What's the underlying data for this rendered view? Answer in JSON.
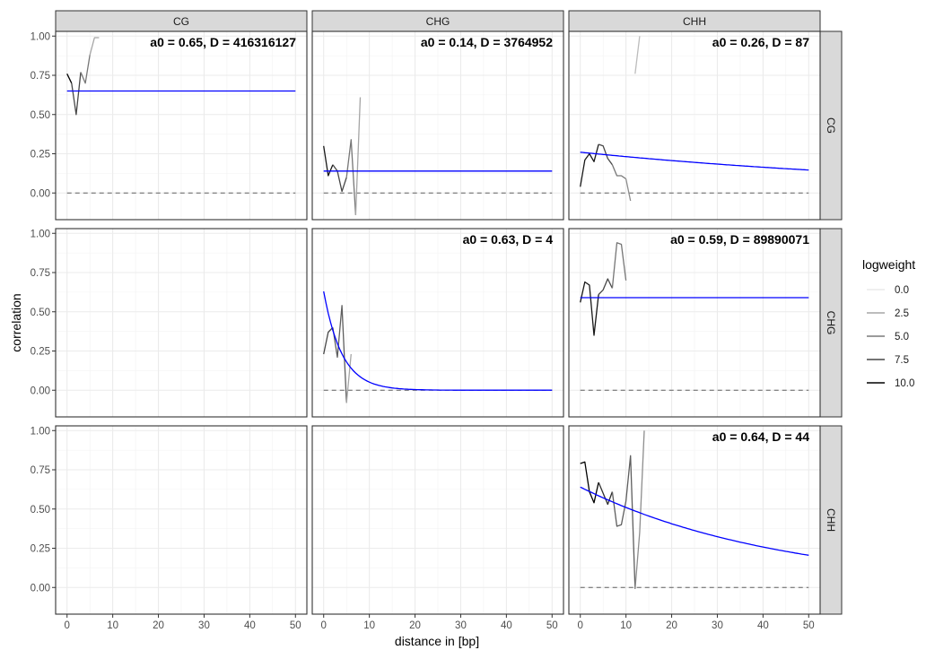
{
  "chart_data": {
    "type": "line",
    "facets": {
      "columns": [
        "CG",
        "CHG",
        "CHH"
      ],
      "rows": [
        "CG",
        "CHG",
        "CHH"
      ]
    },
    "xlabel": "distance in [bp]",
    "ylabel": "correlation",
    "xlim": [
      -2.5,
      52.5
    ],
    "ylim": [
      -0.17,
      1.03
    ],
    "xticks": [
      0,
      10,
      20,
      30,
      40,
      50
    ],
    "xtick_labels": [
      "0",
      "10",
      "20",
      "30",
      "40",
      "50"
    ],
    "yticks": [
      0,
      0.25,
      0.5,
      0.75,
      1
    ],
    "ytick_labels": [
      "0.00",
      "0.25",
      "0.50",
      "0.75",
      "1.00"
    ],
    "grid": true,
    "reference_line": {
      "y": 0,
      "style": "dashed"
    },
    "fit_color": "#0000ff",
    "legend": {
      "title": "logweight",
      "position": "right",
      "entries": [
        {
          "label": "0.0",
          "color": "#eaeaea"
        },
        {
          "label": "2.5",
          "color": "#a6a6a6"
        },
        {
          "label": "5.0",
          "color": "#7a7a7a"
        },
        {
          "label": "7.5",
          "color": "#474747"
        },
        {
          "label": "10.0",
          "color": "#000000"
        }
      ]
    },
    "panels": [
      {
        "col": 0,
        "row": 0,
        "annotation": "a0 = 0.65, D = 416316127",
        "fit": {
          "a0": 0.65,
          "D": 416316127
        },
        "series": [
          {
            "x": [
              0,
              1
            ],
            "y": [
              0.76,
              0.7
            ],
            "logweight": 10
          },
          {
            "x": [
              1,
              2,
              3
            ],
            "y": [
              0.7,
              0.5,
              0.77
            ],
            "logweight": 7
          },
          {
            "x": [
              3,
              4,
              5
            ],
            "y": [
              0.77,
              0.7,
              0.88
            ],
            "logweight": 5
          },
          {
            "x": [
              5,
              6,
              7
            ],
            "y": [
              0.88,
              0.99,
              0.99
            ],
            "logweight": 3
          }
        ]
      },
      {
        "col": 1,
        "row": 0,
        "annotation": "a0 = 0.14, D = 3764952",
        "fit": {
          "a0": 0.14,
          "D": 3764952
        },
        "series": [
          {
            "x": [
              0,
              1,
              2
            ],
            "y": [
              0.3,
              0.11,
              0.18
            ],
            "logweight": 9
          },
          {
            "x": [
              2,
              3,
              4,
              5
            ],
            "y": [
              0.18,
              0.14,
              0.01,
              0.1
            ],
            "logweight": 7
          },
          {
            "x": [
              5,
              6,
              7
            ],
            "y": [
              0.1,
              0.34,
              -0.14
            ],
            "logweight": 5
          },
          {
            "x": [
              7,
              8
            ],
            "y": [
              -0.14,
              0.61
            ],
            "logweight": 3
          }
        ]
      },
      {
        "col": 2,
        "row": 0,
        "annotation": "a0 = 0.26, D = 87",
        "fit": {
          "a0": 0.26,
          "D": 87
        },
        "series": [
          {
            "x": [
              0,
              1,
              2,
              3,
              4
            ],
            "y": [
              0.04,
              0.21,
              0.25,
              0.2,
              0.31
            ],
            "logweight": 9
          },
          {
            "x": [
              4,
              5,
              6,
              7
            ],
            "y": [
              0.31,
              0.3,
              0.22,
              0.18
            ],
            "logweight": 7
          },
          {
            "x": [
              7,
              8,
              9,
              10
            ],
            "y": [
              0.18,
              0.11,
              0.11,
              0.09
            ],
            "logweight": 5
          },
          {
            "x": [
              10,
              11
            ],
            "y": [
              0.09,
              -0.05
            ],
            "logweight": 4
          },
          {
            "x": [
              12,
              13
            ],
            "y": [
              0.76,
              1.0
            ],
            "logweight": 2
          }
        ]
      },
      {
        "col": 1,
        "row": 1,
        "annotation": "a0 = 0.63, D = 4",
        "fit": {
          "a0": 0.63,
          "D": 4
        },
        "series": [
          {
            "x": [
              0,
              1,
              2
            ],
            "y": [
              0.23,
              0.37,
              0.4
            ],
            "logweight": 7
          },
          {
            "x": [
              2,
              3,
              4,
              5
            ],
            "y": [
              0.4,
              0.21,
              0.54,
              -0.08
            ],
            "logweight": 6
          },
          {
            "x": [
              5,
              6
            ],
            "y": [
              -0.08,
              0.23
            ],
            "logweight": 3
          }
        ]
      },
      {
        "col": 2,
        "row": 1,
        "annotation": "a0 = 0.59, D = 89890071",
        "fit": {
          "a0": 0.59,
          "D": 89890071
        },
        "series": [
          {
            "x": [
              0,
              1,
              2,
              3,
              4
            ],
            "y": [
              0.56,
              0.69,
              0.67,
              0.35,
              0.61
            ],
            "logweight": 9
          },
          {
            "x": [
              4,
              5,
              6,
              7
            ],
            "y": [
              0.61,
              0.64,
              0.71,
              0.65
            ],
            "logweight": 7
          },
          {
            "x": [
              7,
              8,
              9,
              10
            ],
            "y": [
              0.65,
              0.94,
              0.93,
              0.7
            ],
            "logweight": 5
          }
        ]
      },
      {
        "col": 2,
        "row": 2,
        "annotation": "a0 = 0.64, D = 44",
        "fit": {
          "a0": 0.64,
          "D": 44
        },
        "series": [
          {
            "x": [
              0,
              1,
              2,
              3,
              4
            ],
            "y": [
              0.79,
              0.8,
              0.61,
              0.54,
              0.67
            ],
            "logweight": 10
          },
          {
            "x": [
              4,
              5,
              6,
              7
            ],
            "y": [
              0.67,
              0.6,
              0.53,
              0.61
            ],
            "logweight": 8
          },
          {
            "x": [
              7,
              8,
              9,
              10,
              11,
              12
            ],
            "y": [
              0.61,
              0.39,
              0.4,
              0.55,
              0.84,
              -0.01
            ],
            "logweight": 6
          },
          {
            "x": [
              12,
              13,
              14
            ],
            "y": [
              -0.01,
              0.35,
              1.0
            ],
            "logweight": 4
          }
        ]
      }
    ]
  }
}
